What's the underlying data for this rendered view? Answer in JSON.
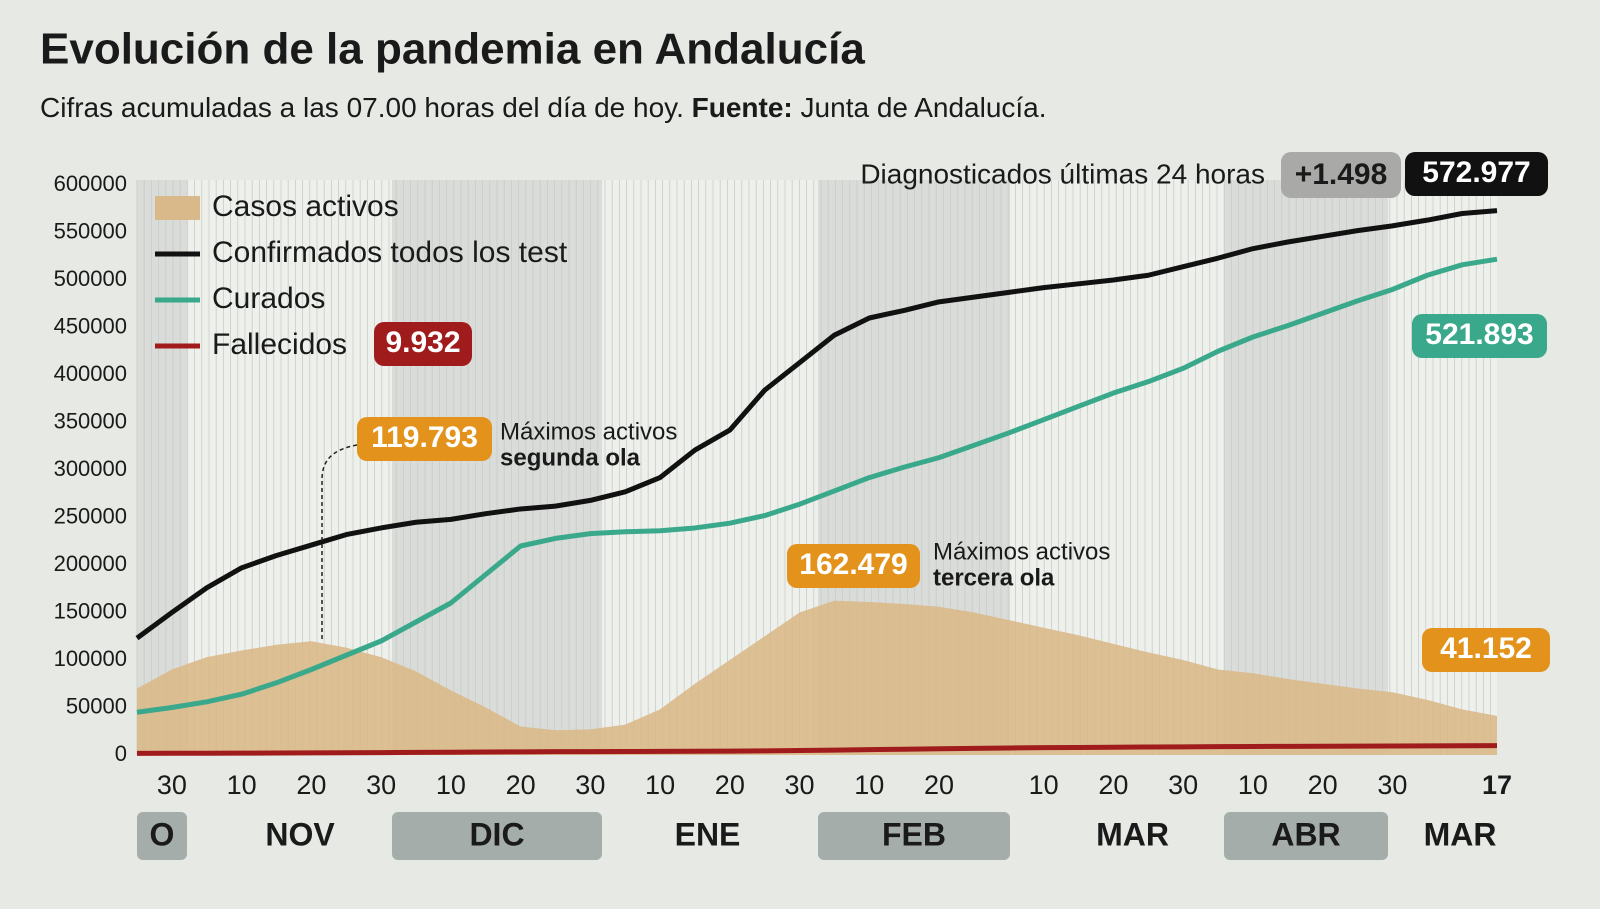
{
  "chart_data": {
    "type": "line",
    "title": "Evolución de la pandemia en Andalucía",
    "subtitle": "Cifras acumuladas a las 07.00 horas del día de hoy.",
    "source_label": "Fuente:",
    "source": "Junta de Andalucía.",
    "daily_text": "Diagnosticados últimas 24 horas",
    "daily_label": "+1.498",
    "annotations": [
      {
        "line1": "Máximos activos",
        "line2": "segunda ola"
      },
      {
        "line1": "Máximos activos",
        "line2": "tercera ola"
      }
    ],
    "categories": [
      null,
      "30",
      null,
      "10",
      null,
      "20",
      null,
      "30",
      null,
      "10",
      null,
      "20",
      null,
      "30",
      null,
      "10",
      null,
      "20",
      null,
      "30",
      null,
      "10",
      null,
      "20",
      null,
      null,
      "10",
      null,
      "20",
      null,
      "30",
      null,
      "10",
      null,
      "20",
      null,
      "30",
      null,
      null,
      "17"
    ],
    "months": [
      "O",
      "NOV",
      "DIC",
      "ENE",
      "FEB",
      "MAR",
      "ABR",
      "MAR"
    ],
    "ylim": [
      0,
      600000
    ],
    "yticks": [
      0,
      50000,
      100000,
      150000,
      200000,
      250000,
      300000,
      350000,
      400000,
      450000,
      500000,
      550000,
      600000
    ],
    "grid": false,
    "series": [
      {
        "name": "Casos activos",
        "color": "#d9b98a",
        "style": "area",
        "values": [
          70000,
          90000,
          103000,
          110000,
          116000,
          119793,
          113000,
          103000,
          88000,
          68000,
          50000,
          30000,
          26000,
          27000,
          32000,
          48000,
          75000,
          100000,
          125000,
          150000,
          162479,
          161000,
          159000,
          156000,
          150000,
          142000,
          134000,
          126000,
          117000,
          108000,
          100000,
          90000,
          86000,
          80000,
          75000,
          70000,
          66000,
          58000,
          48000,
          41152
        ],
        "value_labels": [
          null,
          null,
          null,
          null,
          null,
          "119.793",
          null,
          null,
          null,
          null,
          null,
          null,
          null,
          null,
          null,
          null,
          null,
          null,
          null,
          null,
          "162.479",
          null,
          null,
          null,
          null,
          null,
          null,
          null,
          null,
          null,
          null,
          null,
          null,
          null,
          null,
          null,
          null,
          null,
          null,
          "41.152"
        ]
      },
      {
        "name": "Confirmados todos los test",
        "color": "#111111",
        "style": "line",
        "values": [
          123000,
          150000,
          176000,
          197000,
          210000,
          221000,
          232000,
          239000,
          245000,
          248000,
          254000,
          259000,
          262000,
          268000,
          277000,
          292000,
          321000,
          342000,
          384000,
          413000,
          442000,
          460000,
          468000,
          477000,
          482000,
          487000,
          492000,
          496000,
          500000,
          505000,
          514000,
          523000,
          533000,
          540000,
          546000,
          552000,
          557000,
          563000,
          570000,
          572977
        ],
        "value_labels": [
          null,
          null,
          null,
          null,
          null,
          null,
          null,
          null,
          null,
          null,
          null,
          null,
          null,
          null,
          null,
          null,
          null,
          null,
          null,
          null,
          null,
          null,
          null,
          null,
          null,
          null,
          null,
          null,
          null,
          null,
          null,
          null,
          null,
          null,
          null,
          null,
          null,
          null,
          null,
          "572.977"
        ]
      },
      {
        "name": "Curados",
        "color": "#3aa88a",
        "style": "line",
        "values": [
          45000,
          50000,
          56000,
          64000,
          76000,
          90000,
          105000,
          120000,
          140000,
          160000,
          190000,
          220000,
          228000,
          233000,
          235000,
          236000,
          239000,
          244000,
          252000,
          264000,
          278000,
          292000,
          303000,
          313000,
          326000,
          339000,
          353000,
          367000,
          381000,
          393000,
          407000,
          425000,
          440000,
          452000,
          465000,
          478000,
          490000,
          505000,
          516000,
          521893
        ],
        "value_labels": [
          null,
          null,
          null,
          null,
          null,
          null,
          null,
          null,
          null,
          null,
          null,
          null,
          null,
          null,
          null,
          null,
          null,
          null,
          null,
          null,
          null,
          null,
          null,
          null,
          null,
          null,
          null,
          null,
          null,
          null,
          null,
          null,
          null,
          null,
          null,
          null,
          null,
          null,
          null,
          "521.893"
        ]
      },
      {
        "name": "Fallecidos",
        "color": "#a01c1c",
        "style": "line",
        "values": [
          1700,
          1800,
          1900,
          2000,
          2100,
          2200,
          2350,
          2500,
          2700,
          2900,
          3100,
          3300,
          3500,
          3600,
          3700,
          3800,
          3950,
          4100,
          4350,
          4700,
          5100,
          5600,
          6100,
          6600,
          7000,
          7400,
          7700,
          7950,
          8200,
          8400,
          8600,
          8800,
          8950,
          9100,
          9250,
          9400,
          9500,
          9650,
          9800,
          9932
        ],
        "value_labels": [
          null,
          null,
          null,
          null,
          null,
          null,
          null,
          null,
          null,
          null,
          null,
          null,
          null,
          null,
          null,
          null,
          null,
          null,
          null,
          null,
          null,
          null,
          null,
          null,
          null,
          null,
          null,
          null,
          null,
          null,
          null,
          null,
          null,
          null,
          null,
          null,
          null,
          null,
          null,
          "9.932"
        ]
      }
    ]
  }
}
